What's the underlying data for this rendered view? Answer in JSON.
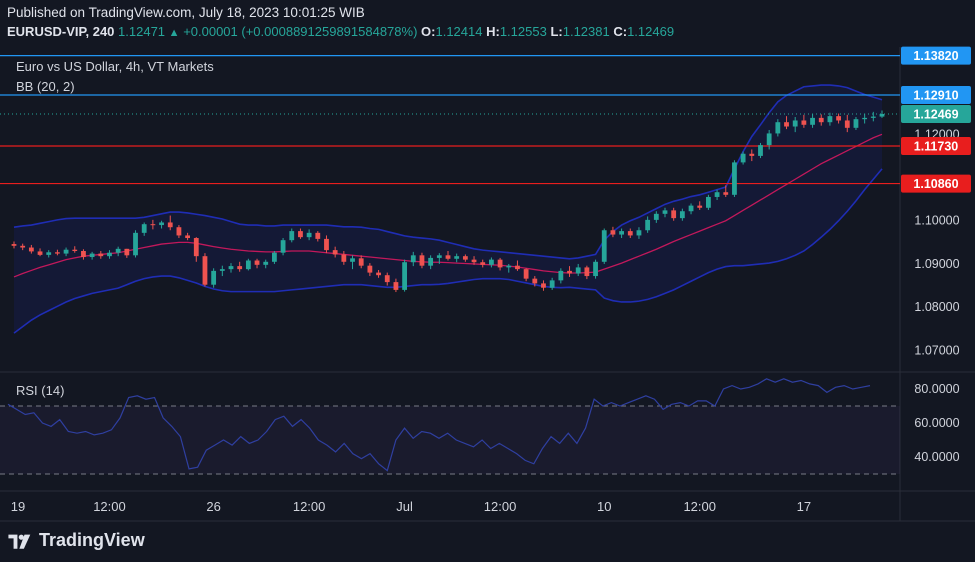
{
  "header": {
    "published": "Published on TradingView.com, July 18, 2023 10:01:25 WIB",
    "symbol": "EURUSD-VIP, 240",
    "last": "1.12471",
    "change_arrow": "▲",
    "change": "+0.00001 (+0.0008891259891584878%)",
    "o_label": "O:",
    "o": "1.12414",
    "h_label": "H:",
    "h": "1.12553",
    "l_label": "L:",
    "l": "1.12381",
    "c_label": "C:",
    "c": "1.12469"
  },
  "legend": {
    "title": "Euro vs US Dollar, 4h, VT Markets",
    "bb": "BB (20, 2)",
    "rsi": "RSI (14)"
  },
  "brand": {
    "name": "TradingView",
    "logo_icon": "tradingview-logo-icon"
  },
  "colors": {
    "bg": "#131722",
    "up": "#26a69a",
    "down": "#ef5350",
    "band": "#1f2db5",
    "basis": "#c2185b",
    "support": "#e81e1e",
    "resistance": "#2196f3",
    "rsi": "#2f3fa0"
  },
  "chart_data": [
    {
      "type": "candlestick",
      "title": "Euro vs US Dollar, 4h, VT Markets",
      "ylim": [
        1.065,
        1.1402
      ],
      "y_ticks": [
        "1.12000",
        "1.10000",
        "1.09000",
        "1.08000",
        "1.07000"
      ],
      "x_ticks": [
        "19",
        "12:00",
        "26",
        "12:00",
        "Jul",
        "12:00",
        "10",
        "12:00",
        "17"
      ],
      "x_tick_positions": [
        0,
        11,
        23,
        34,
        45,
        56,
        68,
        79,
        91
      ],
      "ohlc": [
        [
          1.0946,
          1.0952,
          1.0936,
          1.0942
        ],
        [
          1.0942,
          1.0947,
          1.0932,
          1.0938
        ],
        [
          1.0938,
          1.0944,
          1.0924,
          1.0929
        ],
        [
          1.0929,
          1.0936,
          1.0918,
          1.0921
        ],
        [
          1.0921,
          1.0932,
          1.0915,
          1.0927
        ],
        [
          1.0927,
          1.0933,
          1.092,
          1.0924
        ],
        [
          1.0924,
          1.0938,
          1.0918,
          1.0933
        ],
        [
          1.0933,
          1.0941,
          1.0926,
          1.093
        ],
        [
          1.093,
          1.0934,
          1.091,
          1.0916
        ],
        [
          1.0916,
          1.0928,
          1.091,
          1.0924
        ],
        [
          1.0924,
          1.093,
          1.0912,
          1.0918
        ],
        [
          1.0918,
          1.0932,
          1.0912,
          1.0926
        ],
        [
          1.0926,
          1.094,
          1.0918,
          1.0935
        ],
        [
          1.0935,
          1.0935,
          1.0914,
          1.092
        ],
        [
          1.092,
          1.0978,
          1.0915,
          1.0972
        ],
        [
          1.0972,
          1.0996,
          1.0965,
          1.0992
        ],
        [
          1.0992,
          1.1002,
          1.098,
          1.099
        ],
        [
          1.099,
          1.1,
          1.0982,
          1.0996
        ],
        [
          1.0996,
          1.1012,
          1.0978,
          1.0985
        ],
        [
          1.0985,
          1.099,
          1.096,
          1.0966
        ],
        [
          1.0966,
          1.0972,
          1.0955,
          1.096
        ],
        [
          1.096,
          1.0962,
          1.0905,
          1.0918
        ],
        [
          1.0918,
          1.0925,
          1.0848,
          1.0852
        ],
        [
          1.0852,
          1.089,
          1.0845,
          1.0884
        ],
        [
          1.0884,
          1.0896,
          1.0872,
          1.0888
        ],
        [
          1.0888,
          1.0902,
          1.088,
          1.0895
        ],
        [
          1.0895,
          1.0905,
          1.0882,
          1.0888
        ],
        [
          1.0888,
          1.0912,
          1.0885,
          1.0908
        ],
        [
          1.0908,
          1.0912,
          1.089,
          1.0898
        ],
        [
          1.0898,
          1.091,
          1.089,
          1.0905
        ],
        [
          1.0905,
          1.093,
          1.09,
          1.0926
        ],
        [
          1.0926,
          1.096,
          1.092,
          1.0955
        ],
        [
          1.0955,
          1.0982,
          1.095,
          1.0976
        ],
        [
          1.0976,
          1.0982,
          1.0958,
          1.0962
        ],
        [
          1.0962,
          1.098,
          1.0955,
          1.0972
        ],
        [
          1.0972,
          1.0976,
          1.0952,
          1.0958
        ],
        [
          1.0958,
          1.0966,
          1.0925,
          1.0932
        ],
        [
          1.0932,
          1.094,
          1.0915,
          1.0922
        ],
        [
          1.0922,
          1.093,
          1.0898,
          1.0905
        ],
        [
          1.0905,
          1.092,
          1.0888,
          1.0913
        ],
        [
          1.0913,
          1.092,
          1.089,
          1.0896
        ],
        [
          1.0896,
          1.0902,
          1.0872,
          1.088
        ],
        [
          1.088,
          1.0886,
          1.0868,
          1.0874
        ],
        [
          1.0874,
          1.088,
          1.085,
          1.0858
        ],
        [
          1.0858,
          1.0866,
          1.0835,
          1.084
        ],
        [
          1.084,
          1.091,
          1.0836,
          1.0904
        ],
        [
          1.0904,
          1.0928,
          1.0895,
          1.092
        ],
        [
          1.092,
          1.0926,
          1.089,
          1.0896
        ],
        [
          1.0896,
          1.092,
          1.0888,
          1.0914
        ],
        [
          1.0914,
          1.0925,
          1.09,
          1.092
        ],
        [
          1.092,
          1.093,
          1.0908,
          1.0912
        ],
        [
          1.0912,
          1.0924,
          1.0904,
          1.0918
        ],
        [
          1.0918,
          1.0922,
          1.0905,
          1.091
        ],
        [
          1.091,
          1.0918,
          1.0898,
          1.0904
        ],
        [
          1.0904,
          1.091,
          1.0892,
          1.0898
        ],
        [
          1.0898,
          1.0915,
          1.0892,
          1.091
        ],
        [
          1.091,
          1.0914,
          1.0885,
          1.0892
        ],
        [
          1.0892,
          1.09,
          1.088,
          1.0896
        ],
        [
          1.0896,
          1.0908,
          1.0884,
          1.0888
        ],
        [
          1.0888,
          1.089,
          1.086,
          1.0866
        ],
        [
          1.0866,
          1.0872,
          1.0848,
          1.0855
        ],
        [
          1.0855,
          1.0862,
          1.0838,
          1.0845
        ],
        [
          1.0845,
          1.0868,
          1.084,
          1.0862
        ],
        [
          1.0862,
          1.089,
          1.0855,
          1.0884
        ],
        [
          1.0884,
          1.0895,
          1.087,
          1.0878
        ],
        [
          1.0878,
          1.09,
          1.0872,
          1.0892
        ],
        [
          1.0892,
          1.0896,
          1.0865,
          1.0872
        ],
        [
          1.0872,
          1.091,
          1.0866,
          1.0905
        ],
        [
          1.0905,
          1.0982,
          1.09,
          1.0978
        ],
        [
          1.0978,
          1.0986,
          1.0962,
          1.0968
        ],
        [
          1.0968,
          1.0982,
          1.096,
          1.0976
        ],
        [
          1.0976,
          1.0982,
          1.096,
          1.0966
        ],
        [
          1.0966,
          1.0985,
          1.0958,
          1.0978
        ],
        [
          1.0978,
          1.101,
          1.0972,
          1.1002
        ],
        [
          1.1002,
          1.1022,
          1.0995,
          1.1016
        ],
        [
          1.1016,
          1.103,
          1.1008,
          1.1024
        ],
        [
          1.1024,
          1.103,
          1.1,
          1.1006
        ],
        [
          1.1006,
          1.1028,
          1.1,
          1.1022
        ],
        [
          1.1022,
          1.104,
          1.1015,
          1.1035
        ],
        [
          1.1035,
          1.1045,
          1.1025,
          1.103
        ],
        [
          1.103,
          1.106,
          1.1025,
          1.1055
        ],
        [
          1.1055,
          1.1072,
          1.1048,
          1.1066
        ],
        [
          1.1066,
          1.1082,
          1.1055,
          1.106
        ],
        [
          1.106,
          1.114,
          1.1055,
          1.1135
        ],
        [
          1.1135,
          1.116,
          1.113,
          1.1155
        ],
        [
          1.1155,
          1.1165,
          1.1138,
          1.115
        ],
        [
          1.115,
          1.118,
          1.1145,
          1.1175
        ],
        [
          1.1175,
          1.121,
          1.1165,
          1.1202
        ],
        [
          1.1202,
          1.1235,
          1.1195,
          1.1228
        ],
        [
          1.1228,
          1.1242,
          1.1212,
          1.1218
        ],
        [
          1.1218,
          1.124,
          1.1205,
          1.1232
        ],
        [
          1.1232,
          1.1245,
          1.1215,
          1.1222
        ],
        [
          1.1222,
          1.1248,
          1.1215,
          1.1238
        ],
        [
          1.1238,
          1.1246,
          1.122,
          1.1228
        ],
        [
          1.1228,
          1.125,
          1.122,
          1.1242
        ],
        [
          1.1242,
          1.1248,
          1.1225,
          1.1232
        ],
        [
          1.1232,
          1.1245,
          1.1205,
          1.1215
        ],
        [
          1.1215,
          1.124,
          1.121,
          1.1235
        ],
        [
          1.1235,
          1.1248,
          1.1225,
          1.1238
        ],
        [
          1.1238,
          1.1252,
          1.123,
          1.1241
        ],
        [
          1.1241,
          1.1255,
          1.1238,
          1.1247
        ]
      ],
      "bb_upper": [
        1.0985,
        1.0988,
        1.099,
        1.0994,
        1.0998,
        1.1002,
        1.1005,
        1.1006,
        1.1006,
        1.1006,
        1.1006,
        1.1006,
        1.1006,
        1.1006,
        1.1006,
        1.1008,
        1.1012,
        1.1016,
        1.102,
        1.102,
        1.1018,
        1.1015,
        1.1012,
        1.1008,
        1.1004,
        1.0998,
        1.0992,
        1.099,
        1.099,
        1.0988,
        1.0988,
        1.099,
        1.099,
        1.099,
        1.099,
        1.099,
        1.099,
        1.0988,
        1.0986,
        1.0986,
        1.0985,
        1.0982,
        1.098,
        1.0975,
        1.097,
        1.0965,
        1.0962,
        1.096,
        1.0958,
        1.0955,
        1.095,
        1.0945,
        1.094,
        1.0935,
        1.0932,
        1.093,
        1.0928,
        1.0926,
        1.0924,
        1.0922,
        1.092,
        1.0918,
        1.0916,
        1.0914,
        1.0912,
        1.0914,
        1.0918,
        1.0922,
        1.0955,
        1.0975,
        1.099,
        1.1,
        1.1008,
        1.1018,
        1.1028,
        1.1038,
        1.1045,
        1.105,
        1.1056,
        1.106,
        1.1066,
        1.1072,
        1.1078,
        1.112,
        1.116,
        1.1195,
        1.1222,
        1.125,
        1.1275,
        1.129,
        1.13,
        1.131,
        1.1312,
        1.1314,
        1.1314,
        1.1312,
        1.1308,
        1.13,
        1.1292,
        1.1286,
        1.128
      ],
      "bb_basis": [
        1.087,
        1.0878,
        1.0885,
        1.0892,
        1.0898,
        1.0904,
        1.091,
        1.0914,
        1.0918,
        1.092,
        1.0922,
        1.0924,
        1.0926,
        1.093,
        1.0934,
        1.0938,
        1.0942,
        1.0946,
        1.0948,
        1.095,
        1.095,
        1.0948,
        1.0944,
        1.094,
        1.0937,
        1.0934,
        1.0932,
        1.093,
        1.0929,
        1.0928,
        1.0928,
        1.0929,
        1.093,
        1.093,
        1.093,
        1.0928,
        1.0926,
        1.0924,
        1.0922,
        1.092,
        1.0918,
        1.0916,
        1.0914,
        1.0912,
        1.091,
        1.0908,
        1.0906,
        1.0905,
        1.0904,
        1.0904,
        1.0903,
        1.0902,
        1.0901,
        1.09,
        1.0899,
        1.0898,
        1.0897,
        1.0895,
        1.0893,
        1.089,
        1.0887,
        1.0884,
        1.0882,
        1.088,
        1.0879,
        1.0879,
        1.088,
        1.0881,
        1.0888,
        1.0895,
        1.0902,
        1.091,
        1.0918,
        1.0926,
        1.0934,
        1.0943,
        1.0952,
        1.096,
        1.0968,
        1.0976,
        1.0984,
        1.0992,
        1.1,
        1.1012,
        1.1024,
        1.1036,
        1.1048,
        1.106,
        1.1072,
        1.1084,
        1.1096,
        1.1108,
        1.112,
        1.1132,
        1.1142,
        1.1152,
        1.1162,
        1.1172,
        1.1182,
        1.1192,
        1.12
      ],
      "bb_lower": [
        1.074,
        1.0755,
        1.077,
        1.0782,
        1.0792,
        1.0802,
        1.0812,
        1.082,
        1.0826,
        1.0832,
        1.0836,
        1.084,
        1.0844,
        1.0852,
        1.086,
        1.0866,
        1.087,
        1.0872,
        1.0872,
        1.0868,
        1.0862,
        1.0856,
        1.0848,
        1.0842,
        1.0838,
        1.0836,
        1.0836,
        1.0836,
        1.0836,
        1.0836,
        1.0836,
        1.0838,
        1.084,
        1.0842,
        1.0844,
        1.0846,
        1.0848,
        1.085,
        1.0852,
        1.0852,
        1.0852,
        1.085,
        1.0848,
        1.0846,
        1.0846,
        1.0848,
        1.085,
        1.0852,
        1.0852,
        1.0853,
        1.0855,
        1.0858,
        1.0861,
        1.0864,
        1.0866,
        1.0866,
        1.0866,
        1.0864,
        1.086,
        1.0856,
        1.0852,
        1.0848,
        1.0846,
        1.0845,
        1.0846,
        1.0844,
        1.0842,
        1.084,
        1.0821,
        1.0815,
        1.0812,
        1.0812,
        1.0814,
        1.0818,
        1.0824,
        1.0832,
        1.084,
        1.085,
        1.086,
        1.087,
        1.088,
        1.0888,
        1.0894,
        1.0896,
        1.0896,
        1.0898,
        1.09,
        1.0902,
        1.0906,
        1.0912,
        1.092,
        1.093,
        1.0945,
        1.0962,
        1.098,
        1.1,
        1.1022,
        1.1046,
        1.1072,
        1.1096,
        1.112
      ],
      "levels": [
        {
          "label": "1.13820",
          "value": 1.1382,
          "color": "#2196f3"
        },
        {
          "label": "1.12910",
          "value": 1.1291,
          "color": "#2196f3"
        },
        {
          "label": "1.11730",
          "value": 1.1173,
          "color": "#e81e1e"
        },
        {
          "label": "1.10860",
          "value": 1.1086,
          "color": "#e81e1e"
        }
      ],
      "last_price": {
        "label": "1.12469",
        "value": 1.12469
      }
    },
    {
      "type": "line",
      "title": "RSI (14)",
      "ylim": [
        20,
        90
      ],
      "y_ticks": [
        "80.0000",
        "60.0000",
        "40.0000"
      ],
      "bands": [
        70,
        30
      ],
      "values": [
        71,
        68,
        65,
        66,
        60,
        58,
        62,
        55,
        54,
        55,
        53,
        54,
        56,
        63,
        75,
        76,
        74,
        75,
        63,
        58,
        52,
        33,
        34,
        44,
        47,
        50,
        47,
        52,
        48,
        50,
        55,
        62,
        64,
        58,
        62,
        57,
        50,
        47,
        43,
        48,
        42,
        39,
        42,
        36,
        32,
        50,
        57,
        51,
        55,
        54,
        51,
        54,
        50,
        48,
        46,
        50,
        45,
        48,
        45,
        42,
        38,
        36,
        45,
        52,
        48,
        54,
        48,
        57,
        74,
        70,
        72,
        70,
        72,
        74,
        76,
        74,
        68,
        71,
        72,
        70,
        73,
        73,
        70,
        80,
        82,
        80,
        81,
        83,
        86,
        84,
        86,
        84,
        85,
        83,
        82,
        78,
        81,
        82,
        80,
        81,
        82
      ]
    }
  ]
}
